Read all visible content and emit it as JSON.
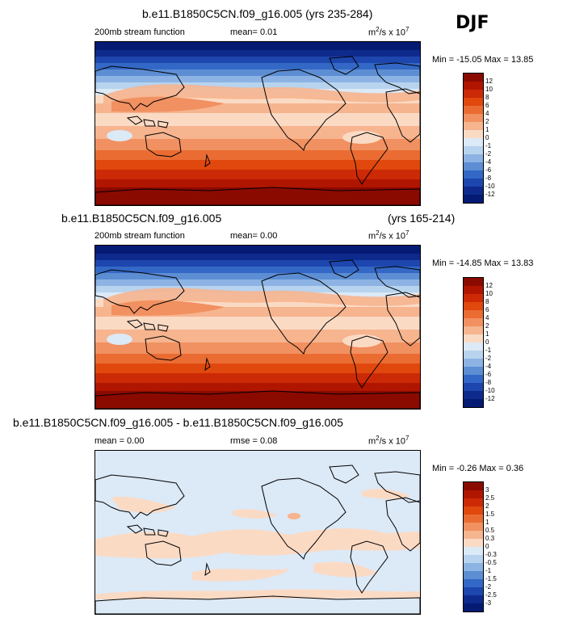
{
  "season": "DJF",
  "units_base": "m",
  "units_exp": "2",
  "units_mid": "/s x 10",
  "units_pow": "7",
  "panels": [
    {
      "title": "b.e11.B1850C5CN.f09_g16.005 (yrs 235-284)",
      "left_label": "200mb stream function",
      "center_label": "mean=  0.01",
      "minmax": "Min = -15.05 Max =  13.85",
      "levels": [
        "12",
        "10",
        "8",
        "6",
        "4",
        "2",
        "1",
        "0",
        "-1",
        "-2",
        "-4",
        "-6",
        "-8",
        "-10",
        "-12"
      ],
      "colors": [
        "#8b0a00",
        "#b01500",
        "#cc2a06",
        "#e0480e",
        "#ea6c33",
        "#f19060",
        "#f6b48f",
        "#fbdac4",
        "#dce9f6",
        "#b7d3ee",
        "#8cb3e3",
        "#5d8ed4",
        "#3468c6",
        "#1d46ae",
        "#0e2a8c",
        "#041a73"
      ]
    },
    {
      "title": "b.e11.B1850C5CN.f09_g16.005",
      "title_right": "(yrs 165-214)",
      "left_label": "200mb stream function",
      "center_label": "mean=  0.00",
      "minmax": "Min = -14.85 Max =  13.83",
      "levels": [
        "12",
        "10",
        "8",
        "6",
        "4",
        "2",
        "1",
        "0",
        "-1",
        "-2",
        "-4",
        "-6",
        "-8",
        "-10",
        "-12"
      ],
      "colors": [
        "#8b0a00",
        "#b01500",
        "#cc2a06",
        "#e0480e",
        "#ea6c33",
        "#f19060",
        "#f6b48f",
        "#fbdac4",
        "#dce9f6",
        "#b7d3ee",
        "#8cb3e3",
        "#5d8ed4",
        "#3468c6",
        "#1d46ae",
        "#0e2a8c",
        "#041a73"
      ]
    },
    {
      "title": "b.e11.B1850C5CN.f09_g16.005 - b.e11.B1850C5CN.f09_g16.005",
      "left_label": "mean =  0.00",
      "center_label": "rmse =  0.08",
      "minmax": "Min =  -0.26 Max =  0.36",
      "levels": [
        "3",
        "2.5",
        "2",
        "1.5",
        "1",
        "0.5",
        "0.3",
        "0",
        "-0.3",
        "-0.5",
        "-1",
        "-1.5",
        "-2",
        "-2.5",
        "-3"
      ],
      "colors": [
        "#8b0a00",
        "#b01500",
        "#cc2a06",
        "#e0480e",
        "#ea6c33",
        "#f19060",
        "#f6b48f",
        "#fbdac4",
        "#dce9f6",
        "#b7d3ee",
        "#8cb3e3",
        "#5d8ed4",
        "#3468c6",
        "#1d46ae",
        "#0e2a8c",
        "#041a73"
      ]
    }
  ]
}
